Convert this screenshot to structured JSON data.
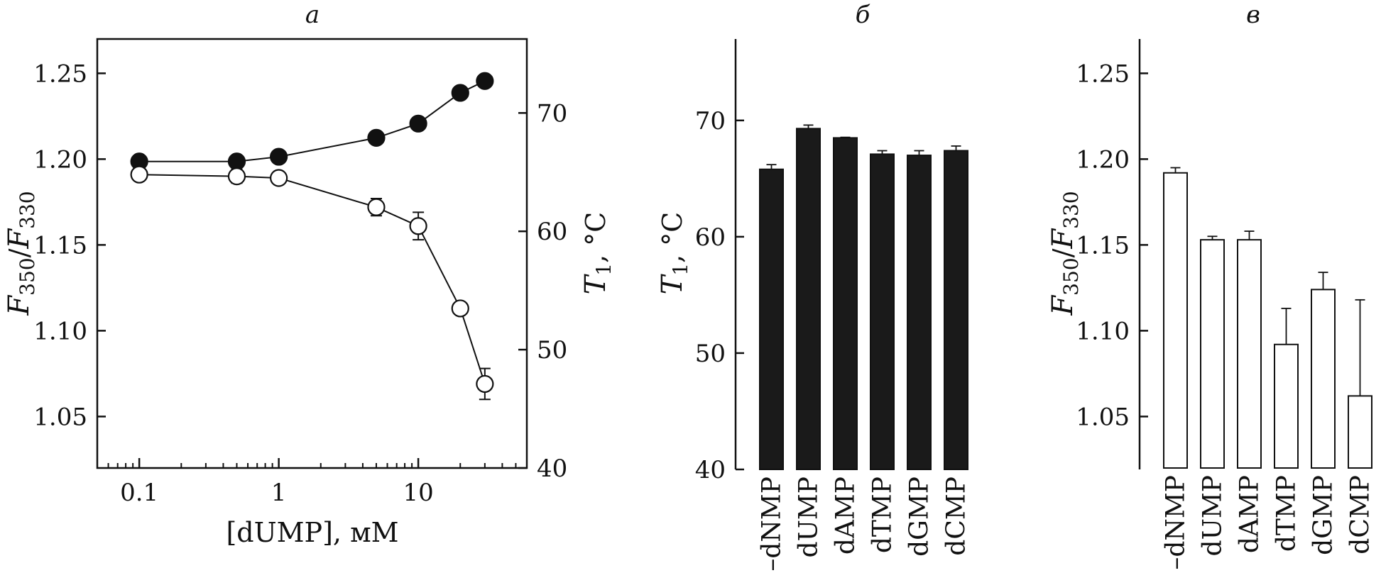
{
  "chart_data": [
    {
      "panel": "а",
      "type": "line",
      "title": "а",
      "xlabel": "[dUMP], мМ",
      "xscale": "log",
      "xlim": [
        0.05,
        60
      ],
      "xticks": [
        "0.1",
        "1",
        "10"
      ],
      "ylabel": {
        "main": "F",
        "sub1": "350",
        "sep": "/",
        "main2": "F",
        "sub2": "330"
      },
      "ylim": [
        1.02,
        1.27
      ],
      "yticks": [
        "1.05",
        "1.10",
        "1.15",
        "1.20",
        "1.25"
      ],
      "y2label": {
        "main": "T",
        "sub": "1",
        "rest": ", °C"
      },
      "y2lim": [
        40,
        76.25
      ],
      "y2ticks": [
        "40",
        "50",
        "60",
        "70"
      ],
      "series": [
        {
          "name": "T1 (filled)",
          "axis": "right",
          "marker": "filled",
          "x": [
            0.1,
            0.5,
            1,
            5,
            10,
            20,
            30
          ],
          "values": [
            65.9,
            65.9,
            66.3,
            67.9,
            69.1,
            71.7,
            72.7
          ]
        },
        {
          "name": "F350/F330 (open)",
          "axis": "left",
          "marker": "open",
          "x": [
            0.1,
            0.5,
            1,
            5,
            10,
            20,
            30
          ],
          "values": [
            1.191,
            1.19,
            1.189,
            1.172,
            1.161,
            1.113,
            1.069
          ],
          "errors": [
            0,
            0.004,
            0,
            0.005,
            0.008,
            0,
            0.009
          ]
        }
      ]
    },
    {
      "panel": "б",
      "type": "bar",
      "title": "б",
      "categories": [
        "–dNMP",
        "dUMP",
        "dAMP",
        "dTMP",
        "dGMP",
        "dCMP"
      ],
      "values": [
        65.8,
        69.3,
        68.5,
        67.1,
        67.0,
        67.4
      ],
      "errors": [
        0.4,
        0.3,
        0.05,
        0.3,
        0.4,
        0.4
      ],
      "ylabel": {
        "main": "T",
        "sub": "1",
        "rest": ", °C"
      },
      "ylim": [
        40,
        77
      ],
      "yticks": [
        "40",
        "50",
        "60",
        "70"
      ],
      "bar_color": "#1a1a1a"
    },
    {
      "panel": "в",
      "type": "bar",
      "title": "в",
      "categories": [
        "–dNMP",
        "dUMP",
        "dAMP",
        "dTMP",
        "dGMP",
        "dCMP"
      ],
      "values": [
        1.192,
        1.153,
        1.153,
        1.092,
        1.124,
        1.062
      ],
      "errors": [
        0.003,
        0.002,
        0.005,
        0.021,
        0.01,
        0.056
      ],
      "ylabel": {
        "main": "F",
        "sub1": "350",
        "sep": "/",
        "main2": "F",
        "sub2": "330"
      },
      "ylim": [
        1.02,
        1.27
      ],
      "yticks": [
        "1.05",
        "1.10",
        "1.15",
        "1.20",
        "1.25"
      ],
      "bar_color": "#ffffff"
    }
  ]
}
